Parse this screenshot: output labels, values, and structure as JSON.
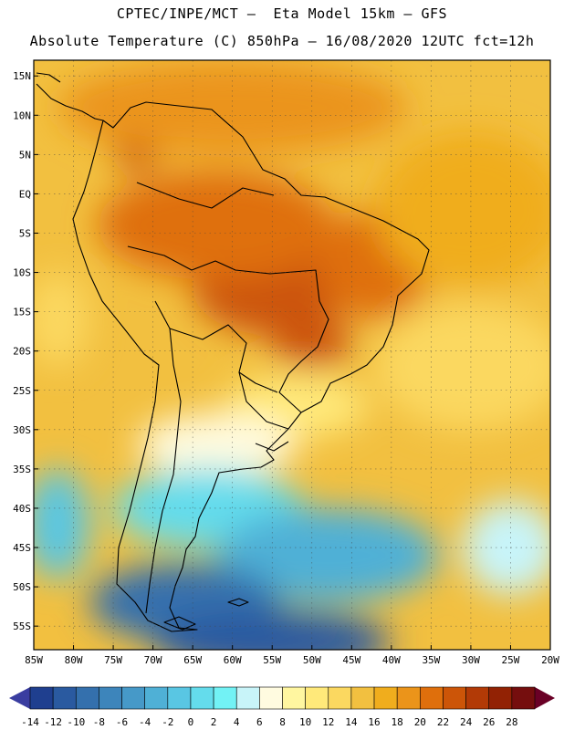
{
  "header": {
    "line1": "CPTEC/INPE/MCT –  Eta Model 15km – GFS",
    "line2": "Absolute Temperature (C) 850hPa – 16/08/2020 12UTC fct=12h"
  },
  "axes": {
    "lat_labels": [
      "15N",
      "10N",
      "5N",
      "EQ",
      "5S",
      "10S",
      "15S",
      "20S",
      "25S",
      "30S",
      "35S",
      "40S",
      "45S",
      "50S",
      "55S"
    ],
    "lon_labels": [
      "85W",
      "80W",
      "75W",
      "70W",
      "65W",
      "60W",
      "55W",
      "50W",
      "45W",
      "40W",
      "35W",
      "30W",
      "25W",
      "20W"
    ]
  },
  "colorbar": {
    "ticks": [
      "-14",
      "-12",
      "-10",
      "-8",
      "-6",
      "-4",
      "-2",
      "0",
      "2",
      "4",
      "6",
      "8",
      "10",
      "12",
      "14",
      "16",
      "18",
      "20",
      "22",
      "24",
      "26",
      "28"
    ],
    "colors": [
      "#1f3f8f",
      "#2a5aa0",
      "#3470ad",
      "#3d85bb",
      "#4699c8",
      "#4fb0d6",
      "#59c6e3",
      "#64dcec",
      "#72f2f5",
      "#c8f4f9",
      "#fffbe0",
      "#fff6a0",
      "#ffe97a",
      "#fbd860",
      "#f2c040",
      "#f0ad1d",
      "#eb941a",
      "#df6f0c",
      "#cc5508",
      "#b23a06",
      "#922204",
      "#750e0e"
    ],
    "low_arrow": "#3a3da0",
    "high_arrow": "#6a0026"
  },
  "chart_data": {
    "type": "heatmap",
    "title": "Absolute Temperature (C) 850hPa",
    "units": "C",
    "variable": "temperature_850hPa",
    "lon_range": [
      -85,
      -20
    ],
    "lat_range": [
      -58,
      17
    ],
    "grid": true,
    "regions": [
      {
        "name": "central-brazil-hot",
        "lon_center": -55,
        "lat_center": -12,
        "lon_radius": 10,
        "lat_radius": 6,
        "value": 23
      },
      {
        "name": "mato-grosso-do-sul",
        "lon_center": -50,
        "lat_center": -19,
        "lon_radius": 5,
        "lat_radius": 3,
        "value": 22
      },
      {
        "name": "northern-colombia",
        "lon_center": -72,
        "lat_center": 6,
        "lon_radius": 3,
        "lat_radius": 3,
        "value": 22
      },
      {
        "name": "amazon-warm",
        "lon_center": -62,
        "lat_center": -4,
        "lon_radius": 15,
        "lat_radius": 7,
        "value": 20
      },
      {
        "name": "northeast-brazil",
        "lon_center": -42,
        "lat_center": -9,
        "lon_radius": 7,
        "lat_radius": 7,
        "value": 20
      },
      {
        "name": "caribbean-warm",
        "lon_center": -60,
        "lat_center": 11,
        "lon_radius": 22,
        "lat_radius": 6,
        "value": 18
      },
      {
        "name": "tropical-atlantic",
        "lon_center": -30,
        "lat_center": -2,
        "lon_radius": 12,
        "lat_radius": 10,
        "value": 17
      },
      {
        "name": "south-atlantic-subtropical",
        "lon_center": -30,
        "lat_center": -22,
        "lon_radius": 12,
        "lat_radius": 8,
        "value": 13
      },
      {
        "name": "southern-brazil",
        "lon_center": -52,
        "lat_center": -27,
        "lon_radius": 9,
        "lat_radius": 4,
        "value": 11
      },
      {
        "name": "pacific-west-coast",
        "lon_center": -82,
        "lat_center": -16,
        "lon_radius": 4,
        "lat_radius": 6,
        "value": 12
      },
      {
        "name": "pampas-cool",
        "lon_center": -62,
        "lat_center": -32,
        "lon_radius": 10,
        "lat_radius": 4,
        "value": 7
      },
      {
        "name": "argentina-cold",
        "lon_center": -63,
        "lat_center": -40,
        "lon_radius": 12,
        "lat_radius": 5,
        "value": 0
      },
      {
        "name": "south-atlantic-cold",
        "lon_center": -48,
        "lat_center": -46,
        "lon_radius": 14,
        "lat_radius": 6,
        "value": -4
      },
      {
        "name": "patagonia-cold",
        "lon_center": -66,
        "lat_center": -52,
        "lon_radius": 12,
        "lat_radius": 5,
        "value": -10
      },
      {
        "name": "drake-passage",
        "lon_center": -55,
        "lat_center": -57,
        "lon_radius": 15,
        "lat_radius": 4,
        "value": -12
      },
      {
        "name": "southeast-atlantic-mild",
        "lon_center": -25,
        "lat_center": -45,
        "lon_radius": 6,
        "lat_radius": 6,
        "value": 5
      },
      {
        "name": "southeast-pacific",
        "lon_center": -82,
        "lat_center": -42,
        "lon_radius": 4,
        "lat_radius": 7,
        "value": -2
      }
    ],
    "background_value": 15
  }
}
